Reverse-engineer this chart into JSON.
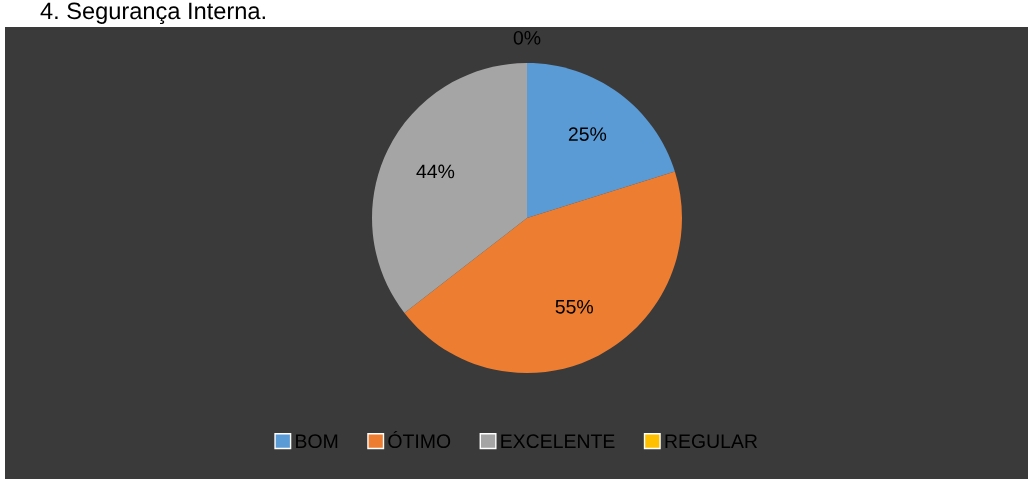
{
  "chart_data": {
    "type": "pie",
    "title": "4. Segurança Interna.",
    "categories": [
      "BOM",
      "ÓTIMO",
      "EXCELENTE",
      "REGULAR"
    ],
    "values": [
      25,
      55,
      44,
      0
    ],
    "colors": [
      "#5b9bd5",
      "#ed7d31",
      "#a5a5a5",
      "#ffc000"
    ],
    "value_labels": [
      "25%",
      "55%",
      "44%",
      "0%"
    ],
    "legend": "bottom"
  }
}
